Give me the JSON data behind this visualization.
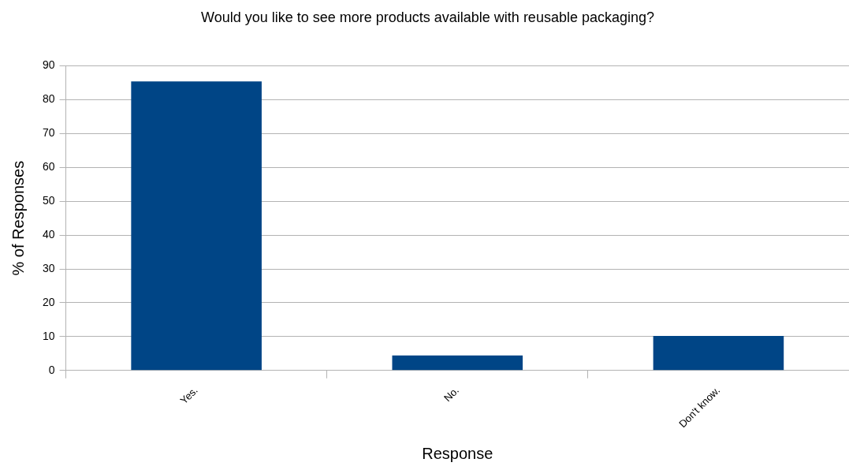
{
  "chart_data": {
    "type": "bar",
    "title": "Would you like to see more products available with reusable packaging?",
    "xlabel": "Response",
    "ylabel": "% of Responses",
    "categories": [
      "Yes.",
      "No.",
      "Don't know."
    ],
    "values": [
      85.4,
      4.4,
      10.2
    ],
    "color": "#004586",
    "ylim": [
      0,
      90
    ],
    "yticks": [
      0,
      10,
      20,
      30,
      40,
      50,
      60,
      70,
      80,
      90
    ],
    "grid": "y",
    "legend": false
  }
}
